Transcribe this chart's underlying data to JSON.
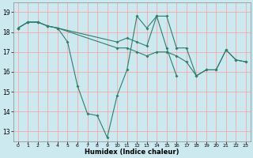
{
  "xlabel": "Humidex (Indice chaleur)",
  "background_color": "#cce9f0",
  "grid_color": "#ff9999",
  "line_color": "#2e7d6e",
  "xlim": [
    -0.5,
    23.5
  ],
  "ylim": [
    12.5,
    19.5
  ],
  "xticks": [
    0,
    1,
    2,
    3,
    4,
    5,
    6,
    7,
    8,
    9,
    10,
    11,
    12,
    13,
    14,
    15,
    16,
    17,
    18,
    19,
    20,
    21,
    22,
    23
  ],
  "yticks": [
    13,
    14,
    15,
    16,
    17,
    18,
    19
  ],
  "lines": [
    {
      "x": [
        0,
        1,
        2,
        3,
        4,
        5,
        6,
        7,
        8,
        9,
        10,
        11,
        12,
        13,
        14,
        15,
        16,
        17,
        18,
        19,
        20,
        21,
        22,
        23
      ],
      "y": [
        18.2,
        18.5,
        18.5,
        18.3,
        18.2,
        17.5,
        15.3,
        13.9,
        13.8,
        12.7,
        14.8,
        16.1,
        18.8,
        18.2,
        18.8,
        17.2,
        15.8,
        null,
        null,
        null,
        null,
        null,
        null,
        null
      ]
    },
    {
      "x": [
        0,
        1,
        2,
        3,
        4,
        10,
        11,
        12,
        13,
        14,
        15,
        16,
        17,
        18,
        19,
        20,
        21,
        22,
        23
      ],
      "y": [
        18.2,
        18.5,
        18.5,
        18.3,
        18.2,
        17.5,
        17.7,
        17.5,
        17.3,
        18.8,
        18.8,
        17.2,
        17.2,
        15.8,
        16.1,
        16.1,
        17.1,
        16.6,
        16.5
      ]
    },
    {
      "x": [
        0,
        1,
        2,
        3,
        4,
        10,
        11,
        12,
        13,
        14,
        15,
        16,
        17,
        18,
        19,
        20,
        21,
        22,
        23
      ],
      "y": [
        18.2,
        18.5,
        18.5,
        18.3,
        18.2,
        17.2,
        17.2,
        17.0,
        16.8,
        17.0,
        17.0,
        16.8,
        16.5,
        15.8,
        16.1,
        16.1,
        17.1,
        16.6,
        16.5
      ]
    }
  ]
}
